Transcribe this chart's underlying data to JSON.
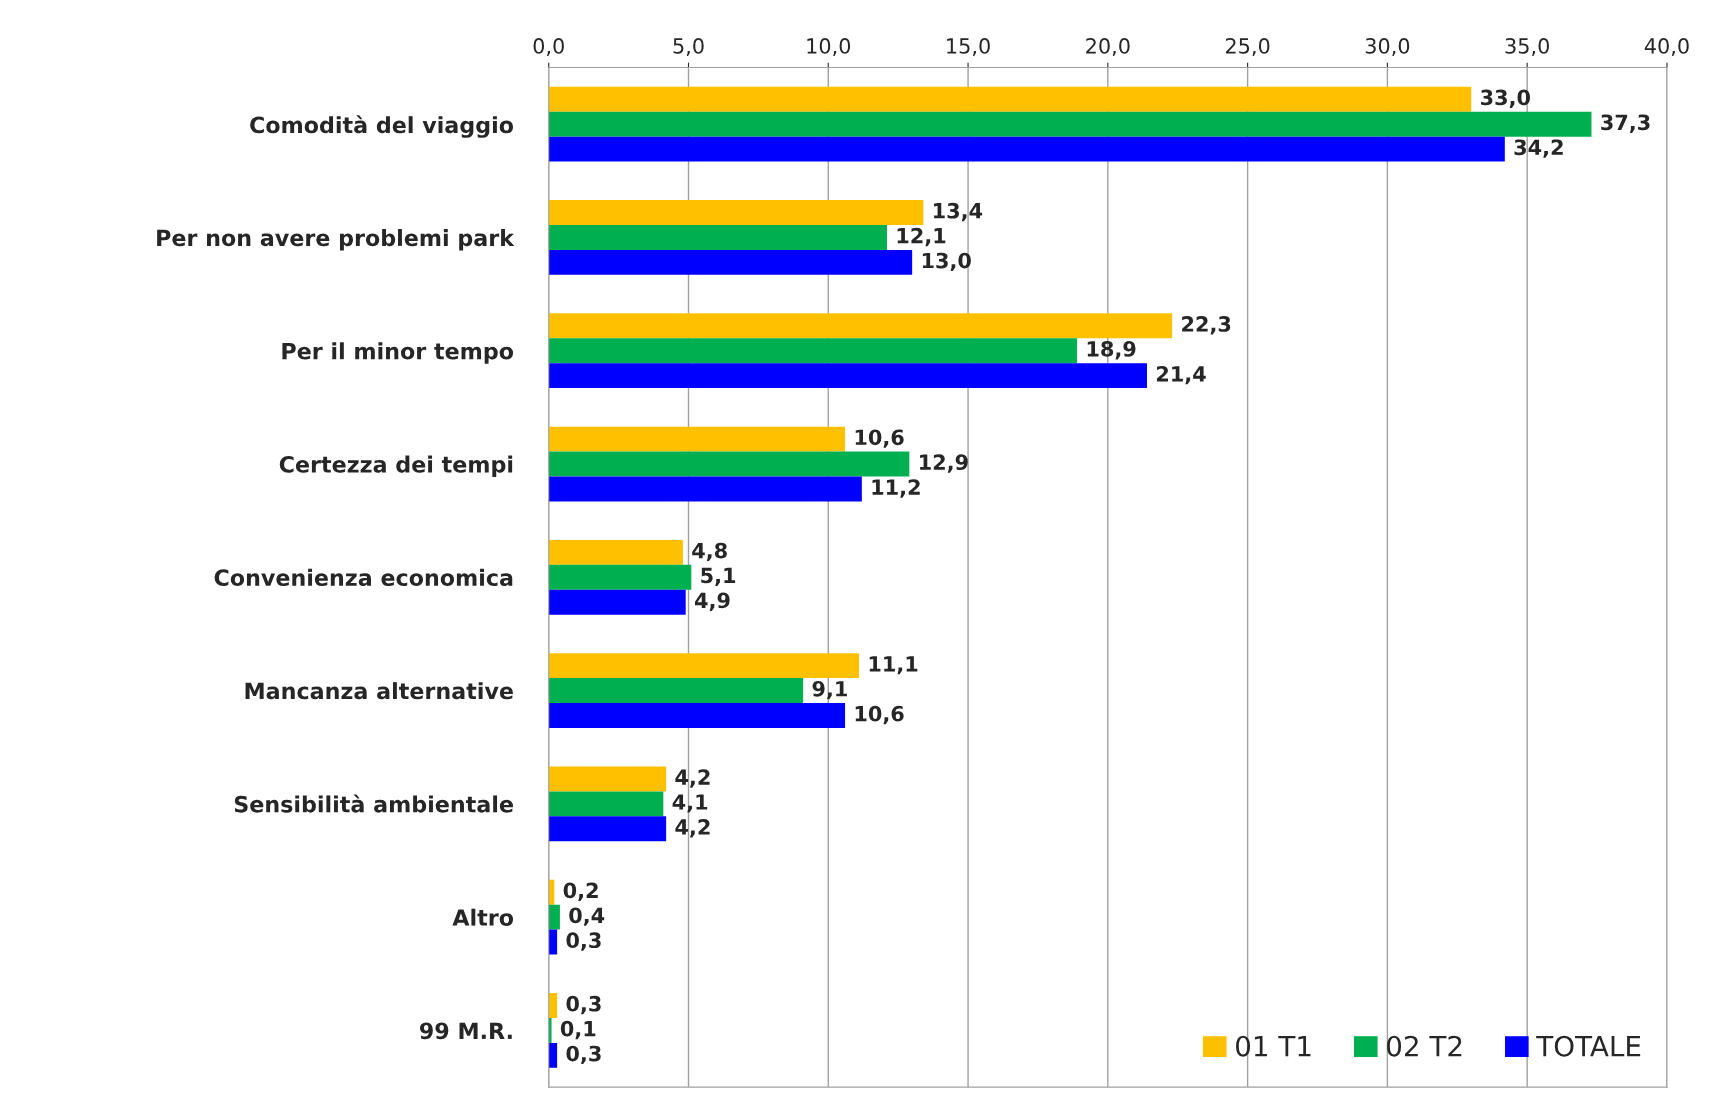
{
  "chart_data": {
    "type": "bar",
    "orientation": "horizontal",
    "categories": [
      "Comodità del viaggio",
      "Per non avere problemi park",
      "Per il minor tempo",
      "Certezza dei tempi",
      "Convenienza economica",
      "Mancanza alternative",
      "Sensibilità ambientale",
      "Altro",
      "99 M.R."
    ],
    "series": [
      {
        "name": "01 T1",
        "color": "#ffc000",
        "values": [
          33.0,
          13.4,
          22.3,
          10.6,
          4.8,
          11.1,
          4.2,
          0.2,
          0.3
        ],
        "value_labels": [
          "33,0",
          "13,4",
          "22,3",
          "10,6",
          "4,8",
          "11,1",
          "4,2",
          "0,2",
          "0,3"
        ]
      },
      {
        "name": "02 T2",
        "color": "#00b050",
        "values": [
          37.3,
          12.1,
          18.9,
          12.9,
          5.1,
          9.1,
          4.1,
          0.4,
          0.1
        ],
        "value_labels": [
          "37,3",
          "12,1",
          "18,9",
          "12,9",
          "5,1",
          "9,1",
          "4,1",
          "0,4",
          "0,1"
        ]
      },
      {
        "name": "TOTALE",
        "color": "#0000ff",
        "values": [
          34.2,
          13.0,
          21.4,
          11.2,
          4.9,
          10.6,
          4.2,
          0.3,
          0.3
        ],
        "value_labels": [
          "34,2",
          "13,0",
          "21,4",
          "11,2",
          "4,9",
          "10,6",
          "4,2",
          "0,3",
          "0,3"
        ]
      }
    ],
    "xlim": [
      0,
      40
    ],
    "xticks": [
      {
        "value": 0,
        "label": "0,0"
      },
      {
        "value": 5,
        "label": "5,0"
      },
      {
        "value": 10,
        "label": "10,0"
      },
      {
        "value": 15,
        "label": "15,0"
      },
      {
        "value": 20,
        "label": "20,0"
      },
      {
        "value": 25,
        "label": "25,0"
      },
      {
        "value": 30,
        "label": "30,0"
      },
      {
        "value": 35,
        "label": "35,0"
      },
      {
        "value": 40,
        "label": "40,0"
      }
    ],
    "grid": "x",
    "legend": "bottom right"
  }
}
